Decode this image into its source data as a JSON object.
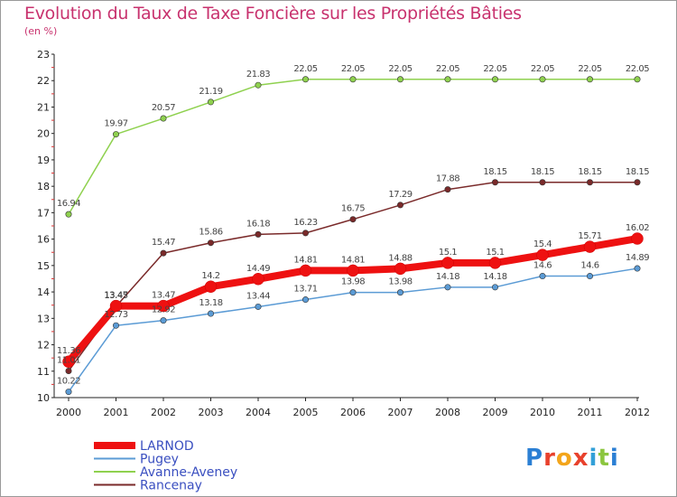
{
  "title": "Evolution du Taux de Taxe Foncière sur les Propriétés Bâties",
  "subtitle": "(en %)",
  "logo": {
    "text": "Proxiti",
    "letters": [
      {
        "ch": "P",
        "color": "#2b7fd4"
      },
      {
        "ch": "r",
        "color": "#e8412c"
      },
      {
        "ch": "o",
        "color": "#f3a51b"
      },
      {
        "ch": "x",
        "color": "#e8412c"
      },
      {
        "ch": "i",
        "color": "#33a0d8"
      },
      {
        "ch": "t",
        "color": "#8cc63f"
      },
      {
        "ch": "i",
        "color": "#2b7fd4"
      }
    ]
  },
  "chart_data": {
    "type": "line",
    "x": [
      "2000",
      "2001",
      "2002",
      "2003",
      "2004",
      "2005",
      "2006",
      "2007",
      "2008",
      "2009",
      "2010",
      "2011",
      "2012"
    ],
    "ylim": [
      10,
      23
    ],
    "yticks": [
      "10",
      "11",
      "12",
      "13",
      "14",
      "15",
      "16",
      "17",
      "18",
      "19",
      "20",
      "21",
      "22",
      "23"
    ],
    "grid": false,
    "legend_position": "bottom-left",
    "series": [
      {
        "name": "Avanne-Aveney",
        "color": "#8fd14f",
        "values": [
          16.94,
          19.97,
          20.57,
          21.19,
          21.83,
          22.05,
          22.05,
          22.05,
          22.05,
          22.05,
          22.05,
          22.05,
          22.05
        ],
        "labels": [
          "16.94",
          "19.97",
          "20.57",
          "21.19",
          "21.83",
          "22.05",
          "22.05",
          "22.05",
          "22.05",
          "22.05",
          "22.05",
          "22.05",
          "22.05"
        ]
      },
      {
        "name": "Rancenay",
        "color": "#7a2a2a",
        "values": [
          11.01,
          13.45,
          15.47,
          15.86,
          16.18,
          16.23,
          16.75,
          17.29,
          17.88,
          18.15,
          18.15,
          18.15,
          18.15
        ],
        "labels": [
          "11.01",
          "13.45",
          "15.47",
          "15.86",
          "16.18",
          "16.23",
          "16.75",
          "17.29",
          "17.88",
          "18.15",
          "18.15",
          "18.15",
          "18.15"
        ]
      },
      {
        "name": "Pugey",
        "color": "#5b9bd5",
        "values": [
          10.22,
          12.73,
          12.92,
          13.18,
          13.44,
          13.71,
          13.98,
          13.98,
          14.18,
          14.18,
          14.6,
          14.6,
          14.89
        ],
        "labels": [
          "10.22",
          "12.73",
          "12.92",
          "13.18",
          "13.44",
          "13.71",
          "13.98",
          "13.98",
          "14.18",
          "14.18",
          "14.6",
          "14.6",
          "14.89"
        ]
      },
      {
        "name": "LARNOD",
        "color": "#ee1111",
        "values": [
          11.36,
          13.47,
          13.47,
          14.2,
          14.49,
          14.81,
          14.81,
          14.88,
          15.1,
          15.1,
          15.4,
          15.71,
          16.02
        ],
        "labels": [
          "11.36",
          "13.47",
          "13.47",
          "14.2",
          "14.49",
          "14.81",
          "14.81",
          "14.88",
          "15.1",
          "15.1",
          "15.4",
          "15.71",
          "16.02"
        ]
      }
    ],
    "legend": [
      {
        "name": "LARNOD",
        "color": "#ee1111",
        "text_color": "#3a4fc0"
      },
      {
        "name": "Pugey",
        "color": "#5b9bd5",
        "text_color": "#3a4fc0"
      },
      {
        "name": "Avanne-Aveney",
        "color": "#8fd14f",
        "text_color": "#3a4fc0"
      },
      {
        "name": "Rancenay",
        "color": "#7a2a2a",
        "text_color": "#3a4fc0"
      }
    ]
  }
}
